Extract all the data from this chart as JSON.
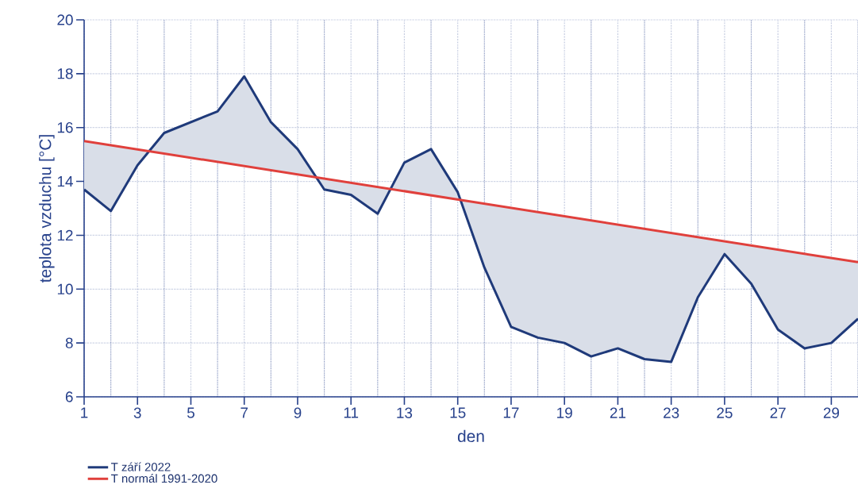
{
  "chart_data": {
    "type": "area",
    "xlabel": "den",
    "ylabel": "teplota vzduchu [°C]",
    "x": [
      1,
      2,
      3,
      4,
      5,
      6,
      7,
      8,
      9,
      10,
      11,
      12,
      13,
      14,
      15,
      16,
      17,
      18,
      19,
      20,
      21,
      22,
      23,
      24,
      25,
      26,
      27,
      28,
      29,
      30
    ],
    "series": [
      {
        "name": "T září 2022",
        "color": "#1f3a7a",
        "type": "line",
        "values": [
          13.7,
          12.9,
          14.6,
          15.8,
          16.2,
          16.6,
          17.9,
          16.2,
          15.2,
          13.7,
          13.5,
          12.8,
          14.7,
          15.2,
          13.6,
          10.8,
          8.6,
          8.2,
          8.0,
          7.5,
          7.8,
          7.4,
          7.3,
          9.7,
          11.3,
          10.2,
          8.5,
          7.8,
          8.0,
          8.9
        ]
      },
      {
        "name": "T normál 1991-2020",
        "color": "#e0403c",
        "type": "line",
        "x": [
          1,
          30
        ],
        "values": [
          15.5,
          11.0
        ]
      }
    ],
    "xlim": [
      1,
      30
    ],
    "xticks": [
      1,
      3,
      5,
      7,
      9,
      11,
      13,
      15,
      17,
      19,
      21,
      23,
      25,
      27,
      29
    ],
    "ylim": [
      6,
      20
    ],
    "yticks": [
      6,
      8,
      10,
      12,
      14,
      16,
      18,
      20
    ],
    "grid": true,
    "legend": "bottom left",
    "line_style": "solid",
    "marker": "none"
  }
}
